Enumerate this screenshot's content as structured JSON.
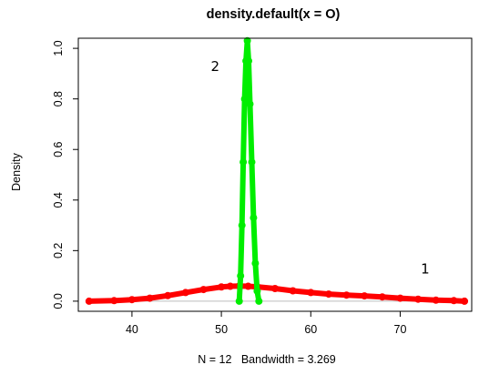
{
  "chart_data": {
    "type": "line",
    "title": "density.default(x = O)",
    "xlabel": "N = 12   Bandwidth = 3.269",
    "ylabel": "Density",
    "xlim": [
      34,
      78
    ],
    "ylim": [
      -0.04,
      1.04
    ],
    "x_ticks": [
      40,
      50,
      60,
      70
    ],
    "y_ticks": [
      0.0,
      0.2,
      0.4,
      0.6,
      0.8,
      1.0
    ],
    "x_tick_labels": [
      "40",
      "50",
      "60",
      "70"
    ],
    "y_tick_labels": [
      "0.0",
      "0.2",
      "0.4",
      "0.6",
      "0.8",
      "1.0"
    ],
    "baseline": 0,
    "grid": false,
    "series": [
      {
        "label": "1",
        "color": "#ff0000",
        "points": [
          [
            35.2,
            0.0
          ],
          [
            38,
            0.002
          ],
          [
            40,
            0.006
          ],
          [
            42,
            0.012
          ],
          [
            44,
            0.022
          ],
          [
            46,
            0.034
          ],
          [
            48,
            0.046
          ],
          [
            50,
            0.056
          ],
          [
            51,
            0.059
          ],
          [
            52,
            0.06
          ],
          [
            53,
            0.059
          ],
          [
            54,
            0.057
          ],
          [
            56,
            0.05
          ],
          [
            58,
            0.041
          ],
          [
            60,
            0.034
          ],
          [
            62,
            0.028
          ],
          [
            64,
            0.024
          ],
          [
            66,
            0.021
          ],
          [
            68,
            0.017
          ],
          [
            70,
            0.012
          ],
          [
            72,
            0.008
          ],
          [
            74,
            0.004
          ],
          [
            76,
            0.002
          ],
          [
            77.2,
            0.0
          ]
        ],
        "label_position": [
          72.8,
          0.11
        ]
      },
      {
        "label": "2",
        "color": "#00ee00",
        "points": [
          [
            52.0,
            0.0
          ],
          [
            52.15,
            0.1
          ],
          [
            52.3,
            0.3
          ],
          [
            52.45,
            0.55
          ],
          [
            52.6,
            0.8
          ],
          [
            52.75,
            0.95
          ],
          [
            52.9,
            1.03
          ],
          [
            53.05,
            0.95
          ],
          [
            53.2,
            0.78
          ],
          [
            53.4,
            0.55
          ],
          [
            53.6,
            0.33
          ],
          [
            53.8,
            0.15
          ],
          [
            54.0,
            0.04
          ],
          [
            54.2,
            0.0
          ]
        ],
        "label_position": [
          49.3,
          0.91
        ]
      }
    ]
  }
}
